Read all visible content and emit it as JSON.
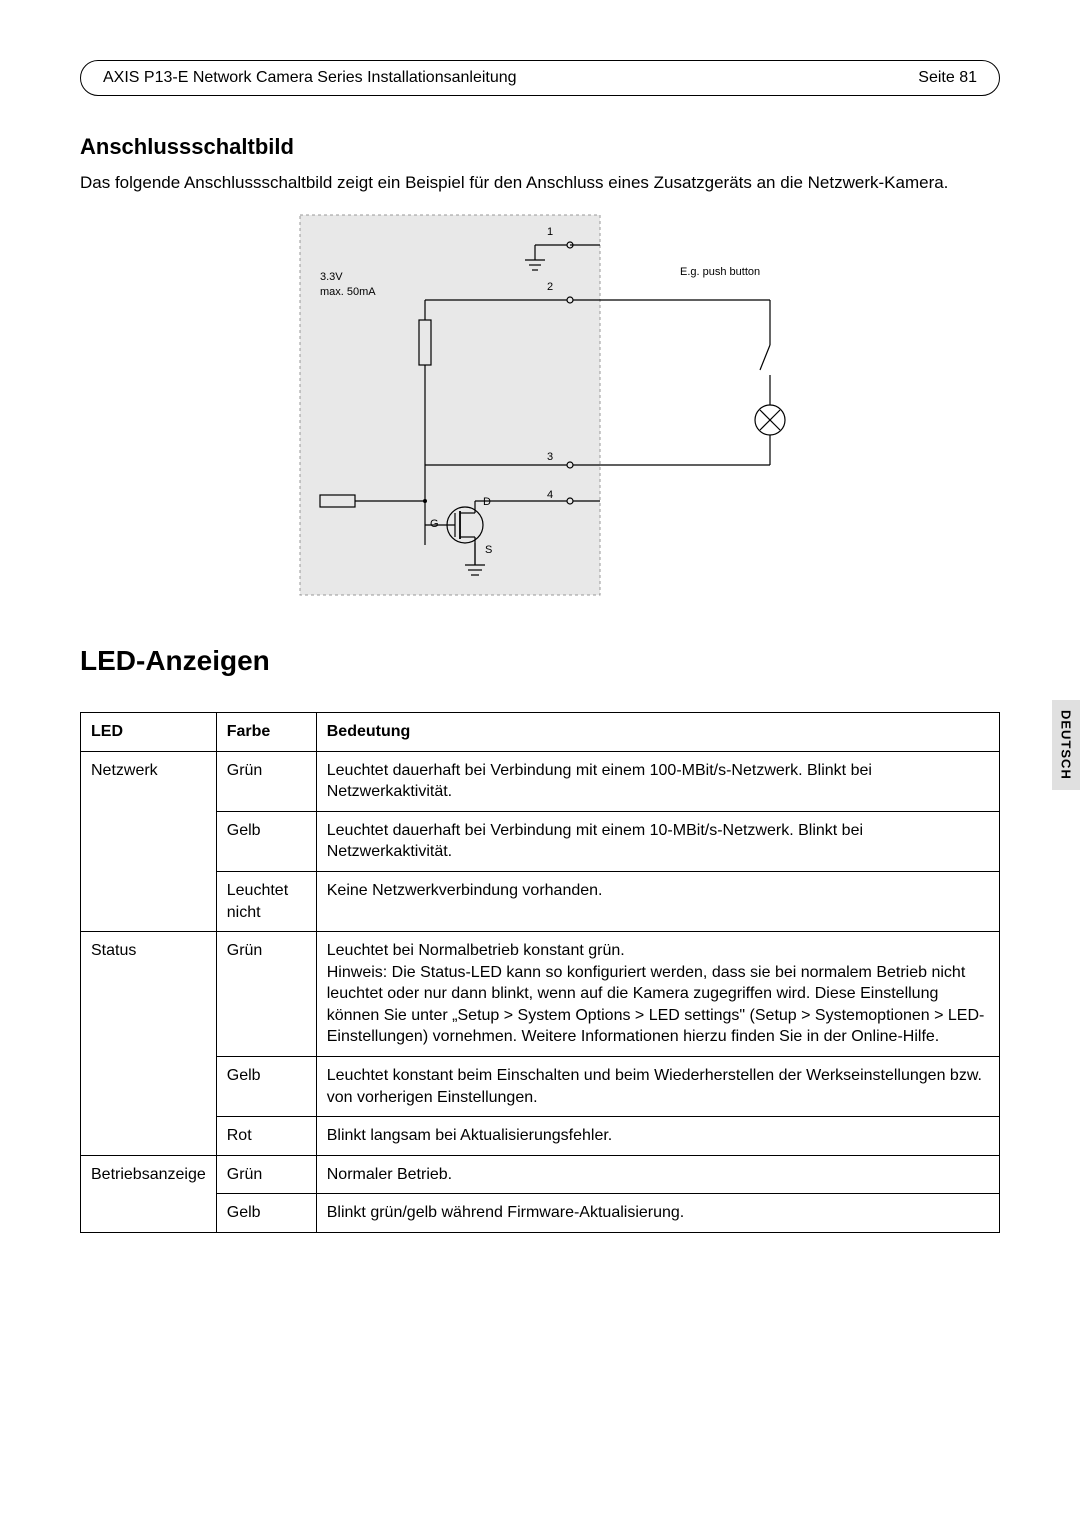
{
  "header": {
    "title": "AXIS P13-E Network Camera Series Installationsanleitung",
    "page": "Seite 81"
  },
  "section1": {
    "heading": "Anschlussschaltbild",
    "paragraph": "Das folgende Anschlussschaltbild zeigt ein Beispiel für den Anschluss eines Zusatzgeräts an die Netzwerk-Kamera."
  },
  "diagram": {
    "label_voltage1": "3.3V",
    "label_voltage2": "max. 50mA",
    "label_push": "E.g. push button",
    "pin1": "1",
    "pin2": "2",
    "pin3": "3",
    "pin4": "4",
    "label_D": "D",
    "label_G": "G",
    "label_S": "S",
    "bg_color": "#e8e8e8",
    "line_color": "#000000",
    "line_width": 1.2,
    "font_size_small": 11,
    "font_size_pin": 11
  },
  "language_tab": "DEUTSCH",
  "section2": {
    "heading": "LED-Anzeigen"
  },
  "table": {
    "columns": [
      "LED",
      "Farbe",
      "Bedeutung"
    ],
    "groups": [
      {
        "led": "Netzwerk",
        "rows": [
          {
            "farbe": "Grün",
            "bedeutung": "Leuchtet dauerhaft bei Verbindung mit einem 100-MBit/s-Netzwerk. Blinkt bei Netzwerkaktivität."
          },
          {
            "farbe": "Gelb",
            "bedeutung": "Leuchtet dauerhaft bei Verbindung mit einem 10-MBit/s-Netzwerk. Blinkt bei Netzwerkaktivität."
          },
          {
            "farbe": "Leuchtet nicht",
            "bedeutung": "Keine Netzwerkverbindung vorhanden."
          }
        ]
      },
      {
        "led": "Status",
        "rows": [
          {
            "farbe": "Grün",
            "bedeutung": "Leuchtet bei Normalbetrieb konstant grün.\nHinweis: Die Status-LED kann so konfiguriert werden, dass sie bei normalem Betrieb nicht leuchtet oder nur dann blinkt, wenn auf die Kamera zugegriffen wird. Diese Einstellung können Sie unter „Setup > System Options > LED settings\" (Setup > Systemoptionen > LED-Einstellungen) vornehmen. Weitere Informationen hierzu finden Sie in der Online-Hilfe."
          },
          {
            "farbe": "Gelb",
            "bedeutung": "Leuchtet konstant beim Einschalten und beim Wiederherstellen der Werkseinstellungen bzw. von vorherigen Einstellungen."
          },
          {
            "farbe": "Rot",
            "bedeutung": "Blinkt langsam bei Aktualisierungsfehler."
          }
        ]
      },
      {
        "led": "Betriebsanzeige",
        "rows": [
          {
            "farbe": "Grün",
            "bedeutung": "Normaler Betrieb."
          },
          {
            "farbe": "Gelb",
            "bedeutung": "Blinkt grün/gelb während Firmware-Aktualisierung."
          }
        ]
      }
    ]
  },
  "colors": {
    "text": "#000000",
    "background": "#ffffff",
    "tab_bg": "#e0e0e0",
    "border": "#000000"
  }
}
